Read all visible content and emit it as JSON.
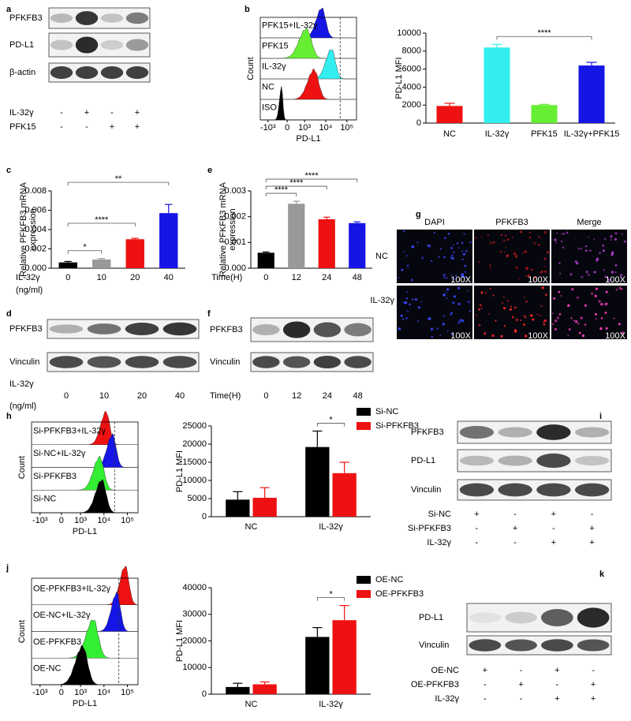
{
  "panel_labels": [
    "a",
    "b",
    "c",
    "d",
    "e",
    "f",
    "g",
    "h",
    "i",
    "j",
    "k"
  ],
  "chart_data": [
    {
      "type": "bar",
      "ylabel": "PD-L1 MFI",
      "categories": [
        "NC",
        "IL-32γ",
        "PFK15",
        "IL-32γ+PFK15"
      ],
      "values": [
        1900,
        8400,
        2000,
        6400
      ],
      "errors": [
        300,
        350,
        80,
        350
      ],
      "colors": [
        "#ee1111",
        "#33eeee",
        "#66ee33",
        "#1515e6"
      ],
      "ylim": [
        0,
        10000
      ],
      "yticks": [
        0,
        2000,
        4000,
        6000,
        8000,
        10000
      ],
      "annotations": [
        {
          "text": "****",
          "between": [
            "IL-32γ",
            "IL-32γ+PFK15"
          ]
        }
      ]
    },
    {
      "type": "bar",
      "ylabel": [
        "Relative PFKFB3 mRNA",
        "expression"
      ],
      "xlabel": "IL-32γ",
      "xlabel_unit": "(ng/ml)",
      "categories": [
        "0",
        "10",
        "20",
        "40"
      ],
      "values": [
        0.0006,
        0.0009,
        0.003,
        0.0057
      ],
      "errors": [
        0.0001,
        0.0001,
        0.0001,
        0.0009
      ],
      "colors": [
        "#000000",
        "#999999",
        "#ee1111",
        "#1515e6"
      ],
      "ylim": [
        0,
        0.008
      ],
      "yticks": [
        {
          "value": 0,
          "label": "0.000"
        },
        {
          "value": 0.002,
          "label": "0.002"
        },
        {
          "value": 0.004,
          "label": "0.004"
        },
        {
          "value": 0.006,
          "label": "0.006"
        },
        {
          "value": 0.008,
          "label": "0.008"
        }
      ],
      "annotations": [
        {
          "text": "*",
          "between": [
            "0",
            "10"
          ]
        },
        {
          "text": "****",
          "between": [
            "0",
            "20"
          ]
        },
        {
          "text": "**",
          "between": [
            "0",
            "40"
          ]
        }
      ]
    },
    {
      "type": "bar",
      "ylabel": [
        "Relative PFKFB3 mRNA",
        "expression"
      ],
      "xlabel": "Time(H)",
      "categories": [
        "0",
        "12",
        "24",
        "48"
      ],
      "values": [
        0.0006,
        0.0025,
        0.0019,
        0.00175
      ],
      "errors": [
        3e-05,
        0.0001,
        8e-05,
        5e-05
      ],
      "colors": [
        "#000000",
        "#999999",
        "#ee1111",
        "#1515e6"
      ],
      "ylim": [
        0,
        0.003
      ],
      "yticks": [
        {
          "value": 0,
          "label": "0.000"
        },
        {
          "value": 0.001,
          "label": "0.001"
        },
        {
          "value": 0.002,
          "label": "0.002"
        },
        {
          "value": 0.003,
          "label": "0.003"
        }
      ],
      "annotations": [
        {
          "text": "****",
          "between": [
            "0",
            "12"
          ]
        },
        {
          "text": "****",
          "between": [
            "0",
            "24"
          ]
        },
        {
          "text": "****",
          "between": [
            "0",
            "48"
          ]
        }
      ]
    },
    {
      "type": "bar",
      "ylabel": "PD-L1 MFI",
      "categories": [
        "NC",
        "IL-32γ"
      ],
      "series": [
        {
          "name": "Si-NC",
          "color": "#000000",
          "values": [
            4700,
            19200
          ],
          "errors": [
            2200,
            4400
          ]
        },
        {
          "name": "Si-PFKFB3",
          "color": "#ee1111",
          "values": [
            5200,
            12000
          ],
          "errors": [
            2800,
            3000
          ]
        }
      ],
      "ylim": [
        0,
        25000
      ],
      "yticks": [
        0,
        5000,
        10000,
        15000,
        20000,
        25000
      ],
      "annotations": [
        {
          "text": "*",
          "category": "IL-32γ",
          "between": [
            "Si-NC",
            "Si-PFKFB3"
          ]
        }
      ]
    },
    {
      "type": "bar",
      "ylabel": "PD-L1 MFI",
      "categories": [
        "NC",
        "IL-32γ"
      ],
      "series": [
        {
          "name": "OE-NC",
          "color": "#000000",
          "values": [
            2700,
            21500
          ],
          "errors": [
            1400,
            3500
          ]
        },
        {
          "name": "OE-PFKFB3",
          "color": "#ee1111",
          "values": [
            3700,
            27800
          ],
          "errors": [
            900,
            5500
          ]
        }
      ],
      "ylim": [
        0,
        40000
      ],
      "yticks": [
        0,
        10000,
        20000,
        30000,
        40000
      ],
      "annotations": [
        {
          "text": "*",
          "category": "IL-32γ",
          "between": [
            "OE-NC",
            "OE-PFKFB3"
          ]
        }
      ]
    }
  ],
  "blots": {
    "a": {
      "rows": [
        "PFKFB3",
        "PD-L1",
        "β-actin"
      ],
      "conditions": [
        {
          "name": "IL-32γ",
          "signs": [
            "-",
            "+",
            "-",
            "+"
          ]
        },
        {
          "name": "PFK15",
          "signs": [
            "-",
            "-",
            "+",
            "+"
          ]
        }
      ]
    },
    "d": {
      "rows": [
        "PFKFB3",
        "Vinculin"
      ],
      "xlabel": "IL-32γ",
      "xlabel_unit": "(ng/ml)",
      "lanes": [
        "0",
        "10",
        "20",
        "40"
      ]
    },
    "f": {
      "rows": [
        "PFKFB3",
        "Vinculin"
      ],
      "xlabel": "Time(H)",
      "lanes": [
        "0",
        "12",
        "24",
        "48"
      ]
    },
    "i": {
      "rows": [
        "PFKFB3",
        "PD-L1",
        "Vinculin"
      ],
      "conditions": [
        {
          "name": "Si-NC",
          "signs": [
            "+",
            "-",
            "+",
            "-"
          ]
        },
        {
          "name": "Si-PFKFB3",
          "signs": [
            "-",
            "+",
            "-",
            "+"
          ]
        },
        {
          "name": "IL-32γ",
          "signs": [
            "-",
            "-",
            "+",
            "+"
          ]
        }
      ]
    },
    "k": {
      "rows": [
        "PD-L1",
        "Vinculin"
      ],
      "conditions": [
        {
          "name": "OE-NC",
          "signs": [
            "+",
            "-",
            "+",
            "-"
          ]
        },
        {
          "name": "OE-PFKFB3",
          "signs": [
            "-",
            "+",
            "-",
            "+"
          ]
        },
        {
          "name": "IL-32γ",
          "signs": [
            "-",
            "-",
            "+",
            "+"
          ]
        }
      ]
    }
  },
  "flow": {
    "b": {
      "ylabel": "Count",
      "xlabel": "PD-L1",
      "xticks": [
        "-10³",
        "0",
        "10³",
        "10⁴",
        "10⁵"
      ],
      "samples": [
        {
          "name": "PFK15+IL-32γ",
          "color": "#1515e6"
        },
        {
          "name": "PFK15",
          "color": "#66ee33"
        },
        {
          "name": "IL-32γ",
          "color": "#33eeee"
        },
        {
          "name": "NC",
          "color": "#ee1111"
        },
        {
          "name": "ISO",
          "color": "#000000"
        }
      ]
    },
    "h": {
      "ylabel": "Count",
      "xlabel": "PD-L1",
      "xticks": [
        "-10³",
        "0",
        "10³",
        "10⁴",
        "10⁵"
      ],
      "samples": [
        {
          "name": "Si-PFKFB3+IL-32γ",
          "color": "#ee1111"
        },
        {
          "name": "Si-NC+IL-32γ",
          "color": "#1515e6"
        },
        {
          "name": "Si-PFKFB3",
          "color": "#33ee33"
        },
        {
          "name": "Si-NC",
          "color": "#000000"
        }
      ]
    },
    "j": {
      "ylabel": "Count",
      "xlabel": "PD-L1",
      "xticks": [
        "-10³",
        "0",
        "10³",
        "10⁴",
        "10⁵"
      ],
      "samples": [
        {
          "name": "OE-PFKFB3+IL-32γ",
          "color": "#ee1111"
        },
        {
          "name": "OE-NC+IL-32γ",
          "color": "#1515e6"
        },
        {
          "name": "OE-PFKFB3",
          "color": "#33ee33"
        },
        {
          "name": "OE-NC",
          "color": "#000000"
        }
      ]
    }
  },
  "images": {
    "g": {
      "columns": [
        "DAPI",
        "PFKFB3",
        "Merge"
      ],
      "rows": [
        "NC",
        "IL-32γ"
      ],
      "magnification": "100X"
    }
  }
}
